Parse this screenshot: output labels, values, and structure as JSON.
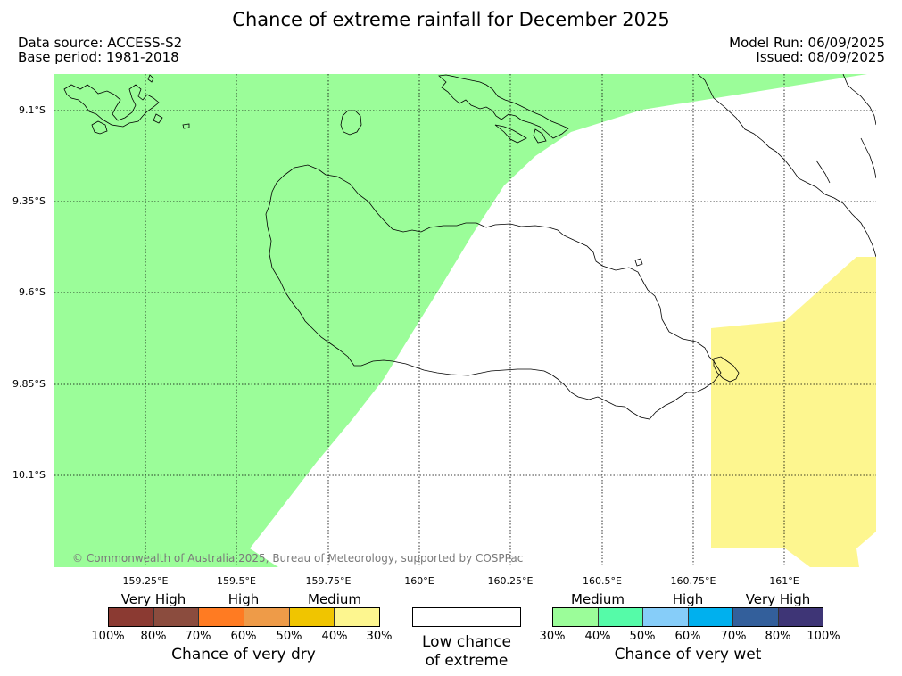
{
  "title": "Chance of extreme rainfall for December 2025",
  "data_source": "Data source: ACCESS-S2",
  "base_period": "Base period: 1981-2018",
  "model_run": "Model Run: 06/09/2025",
  "issued": "Issued: 08/09/2025",
  "copyright": "© Commonwealth of Australia 2025, Bureau of Meteorology, supported by COSPPac",
  "lat_ticks": [
    "9.1°S",
    "9.35°S",
    "9.6°S",
    "9.85°S",
    "10.1°S"
  ],
  "lon_ticks": [
    "159.25°E",
    "159.5°E",
    "159.75°E",
    "160°E",
    "160.25°E",
    "160.5°E",
    "160.75°E",
    "161°E"
  ],
  "colors": {
    "medium_wet": "#9bfd99",
    "medium_dry": "#fdf68f",
    "land_outline": "#000000"
  },
  "dry_scale": {
    "labels": [
      "Very High",
      "High",
      "Medium"
    ],
    "colors": [
      "#8b3a32",
      "#8b4c3e",
      "#ff7b22",
      "#ee9b48",
      "#f0c500",
      "#fdf68f"
    ],
    "percents": [
      "100%",
      "80%",
      "70%",
      "60%",
      "50%",
      "40%",
      "30%"
    ],
    "title": "Chance of very dry"
  },
  "low_chance": {
    "line1": "Low chance",
    "line2": "of extreme"
  },
  "wet_scale": {
    "labels": [
      "Medium",
      "High",
      "Very High"
    ],
    "colors": [
      "#9bfd99",
      "#55fba8",
      "#86cdf9",
      "#00b0ee",
      "#335f9b",
      "#3e3576"
    ],
    "percents": [
      "30%",
      "40%",
      "50%",
      "60%",
      "70%",
      "80%",
      "100%"
    ],
    "title": "Chance of very wet"
  }
}
